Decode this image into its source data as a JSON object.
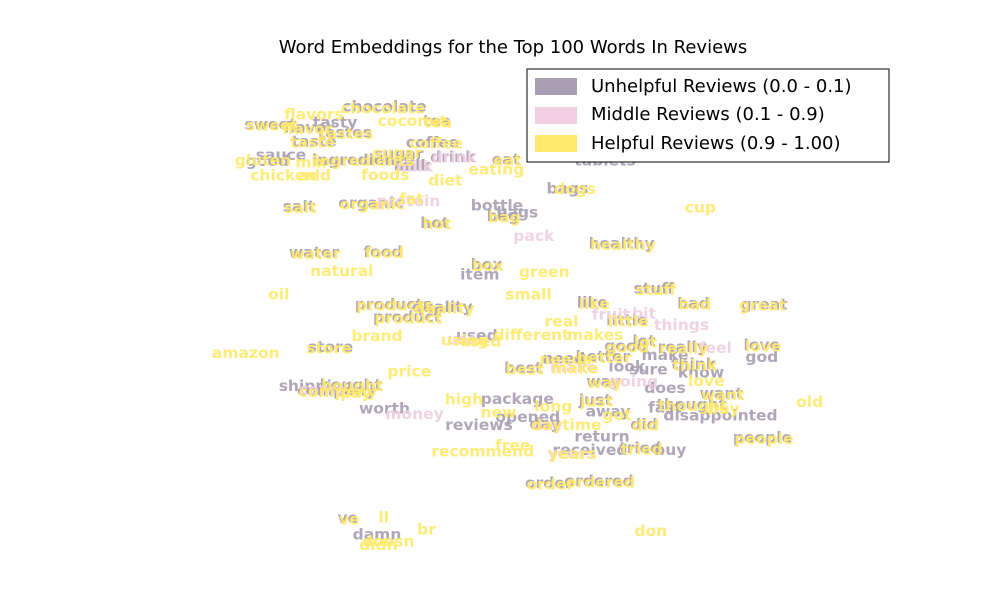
{
  "chart_data": {
    "type": "scatter",
    "title": "Word Embeddings for the Top 100 Words In Reviews",
    "xlabel": "",
    "ylabel": "",
    "axes_visible": false,
    "grid": false,
    "legend_position": "top-right",
    "xlim": [
      0,
      100
    ],
    "ylim": [
      0,
      100
    ],
    "series": [
      {
        "name": "Unhelpful Reviews (0.0 - 0.1)",
        "color": "#a89fb2",
        "points": [
          {
            "word": "chocolate",
            "x": 34.6,
            "y": 92.4
          },
          {
            "word": "tea",
            "x": 41.6,
            "y": 89.2
          },
          {
            "word": "tasty",
            "x": 28.0,
            "y": 88.9
          },
          {
            "word": "sweet",
            "x": 19.4,
            "y": 88.5
          },
          {
            "word": "flavor",
            "x": 24.5,
            "y": 87.8
          },
          {
            "word": "tastes",
            "x": 29.3,
            "y": 86.7
          },
          {
            "word": "taste",
            "x": 25.2,
            "y": 84.8
          },
          {
            "word": "sauce",
            "x": 20.8,
            "y": 81.8
          },
          {
            "word": "good",
            "x": 19.0,
            "y": 80.5
          },
          {
            "word": "sugar",
            "x": 36.5,
            "y": 82.1
          },
          {
            "word": "ingredients",
            "x": 31.6,
            "y": 80.8
          },
          {
            "word": "coffee",
            "x": 41.0,
            "y": 84.6
          },
          {
            "word": "drink",
            "x": 43.7,
            "y": 81.4
          },
          {
            "word": "eat",
            "x": 50.8,
            "y": 80.9
          },
          {
            "word": "milk",
            "x": 38.3,
            "y": 79.6
          },
          {
            "word": "tablets",
            "x": 64.0,
            "y": 80.6
          },
          {
            "word": "bags",
            "x": 59.0,
            "y": 74.6
          },
          {
            "word": "salt",
            "x": 23.2,
            "y": 70.6
          },
          {
            "word": "organic",
            "x": 32.8,
            "y": 71.4
          },
          {
            "word": "bottle",
            "x": 49.6,
            "y": 70.9
          },
          {
            "word": "bags",
            "x": 52.3,
            "y": 69.4
          },
          {
            "word": "bag",
            "x": 50.4,
            "y": 68.6
          },
          {
            "word": "hot",
            "x": 41.3,
            "y": 67.1
          },
          {
            "word": "water",
            "x": 25.2,
            "y": 60.6
          },
          {
            "word": "food",
            "x": 34.4,
            "y": 60.8
          },
          {
            "word": "box",
            "x": 48.2,
            "y": 58.0
          },
          {
            "word": "item",
            "x": 47.3,
            "y": 55.9
          },
          {
            "word": "healthy",
            "x": 66.2,
            "y": 62.6
          },
          {
            "word": "stuff",
            "x": 70.5,
            "y": 52.8
          },
          {
            "word": "like",
            "x": 62.3,
            "y": 49.8
          },
          {
            "word": "bad",
            "x": 75.8,
            "y": 49.6
          },
          {
            "word": "great",
            "x": 85.2,
            "y": 49.4
          },
          {
            "word": "products",
            "x": 35.8,
            "y": 49.4
          },
          {
            "word": "quality",
            "x": 42.3,
            "y": 48.8
          },
          {
            "word": "product",
            "x": 37.6,
            "y": 46.6
          },
          {
            "word": "little",
            "x": 66.9,
            "y": 46.0
          },
          {
            "word": "used",
            "x": 46.9,
            "y": 42.6
          },
          {
            "word": "good",
            "x": 66.8,
            "y": 40.3
          },
          {
            "word": "lot",
            "x": 69.2,
            "y": 41.4
          },
          {
            "word": "really",
            "x": 74.3,
            "y": 40.1
          },
          {
            "word": "store",
            "x": 27.4,
            "y": 40.1
          },
          {
            "word": "love",
            "x": 84.9,
            "y": 40.5
          },
          {
            "word": "need",
            "x": 58.5,
            "y": 37.6
          },
          {
            "word": "better",
            "x": 63.7,
            "y": 38.0
          },
          {
            "word": "make",
            "x": 72.0,
            "y": 38.4
          },
          {
            "word": "think",
            "x": 75.8,
            "y": 36.4
          },
          {
            "word": "god",
            "x": 84.9,
            "y": 37.9
          },
          {
            "word": "best",
            "x": 53.1,
            "y": 35.5
          },
          {
            "word": "look",
            "x": 66.9,
            "y": 35.9
          },
          {
            "word": "sure",
            "x": 69.8,
            "y": 35.2
          },
          {
            "word": "know",
            "x": 76.8,
            "y": 34.6
          },
          {
            "word": "way",
            "x": 63.8,
            "y": 32.6
          },
          {
            "word": "shipping",
            "x": 25.5,
            "y": 31.6
          },
          {
            "word": "bought",
            "x": 30.1,
            "y": 31.9
          },
          {
            "word": "company",
            "x": 28.2,
            "y": 30.6
          },
          {
            "word": "package",
            "x": 52.3,
            "y": 28.8
          },
          {
            "word": "does",
            "x": 72.0,
            "y": 31.2
          },
          {
            "word": "want",
            "x": 79.5,
            "y": 30.0
          },
          {
            "word": "just",
            "x": 62.7,
            "y": 28.6
          },
          {
            "word": "worth",
            "x": 34.6,
            "y": 26.7
          },
          {
            "word": "fast",
            "x": 72.0,
            "y": 27.0
          },
          {
            "word": "thought",
            "x": 75.5,
            "y": 27.6
          },
          {
            "word": "away",
            "x": 64.4,
            "y": 26.1
          },
          {
            "word": "opened",
            "x": 53.7,
            "y": 24.9
          },
          {
            "word": "reviews",
            "x": 47.2,
            "y": 23.1
          },
          {
            "word": "day",
            "x": 56.0,
            "y": 23.4
          },
          {
            "word": "disappointed",
            "x": 79.4,
            "y": 25.2
          },
          {
            "word": "did",
            "x": 69.2,
            "y": 23.3
          },
          {
            "word": "return",
            "x": 63.6,
            "y": 20.7
          },
          {
            "word": "received",
            "x": 62.0,
            "y": 17.7
          },
          {
            "word": "tried",
            "x": 68.7,
            "y": 18.1
          },
          {
            "word": "buy",
            "x": 72.7,
            "y": 17.7
          },
          {
            "word": "people",
            "x": 85.0,
            "y": 20.4
          },
          {
            "word": "ordered",
            "x": 63.2,
            "y": 11.0
          },
          {
            "word": "order",
            "x": 56.5,
            "y": 10.5
          },
          {
            "word": "damn",
            "x": 33.6,
            "y": -0.6
          },
          {
            "word": "ve",
            "x": 29.7,
            "y": 2.9
          }
        ]
      },
      {
        "name": "Middle Reviews (0.1 - 0.9)",
        "color": "#efcfe0",
        "points": [
          {
            "word": "drink",
            "x": 43.9,
            "y": 81.3
          },
          {
            "word": "milk",
            "x": 38.6,
            "y": 79.4
          },
          {
            "word": "protein",
            "x": 37.8,
            "y": 71.8
          },
          {
            "word": "pack",
            "x": 54.5,
            "y": 64.2
          },
          {
            "word": "fruit",
            "x": 64.8,
            "y": 47.2
          },
          {
            "word": "bit",
            "x": 69.2,
            "y": 47.4
          },
          {
            "word": "things",
            "x": 74.2,
            "y": 44.9
          },
          {
            "word": "feel",
            "x": 78.7,
            "y": 39.9
          },
          {
            "word": "going",
            "x": 67.8,
            "y": 32.6
          },
          {
            "word": "come",
            "x": 26.3,
            "y": 30.9
          },
          {
            "word": "money",
            "x": 38.6,
            "y": 25.5
          },
          {
            "word": "use",
            "x": 45.0,
            "y": 41.7
          },
          {
            "word": "make",
            "x": 59.8,
            "y": 35.7
          },
          {
            "word": "years",
            "x": 59.5,
            "y": 17.0
          },
          {
            "word": "day",
            "x": 56.3,
            "y": 23.0
          }
        ]
      },
      {
        "name": "Helpful Reviews (0.9 - 1.00)",
        "color": "#ffe96b",
        "points": [
          {
            "word": "chocolate",
            "x": 34.4,
            "y": 92.0
          },
          {
            "word": "flavors",
            "x": 25.2,
            "y": 90.6
          },
          {
            "word": "coconut",
            "x": 38.3,
            "y": 89.2
          },
          {
            "word": "tea",
            "x": 41.7,
            "y": 88.9
          },
          {
            "word": "sweet",
            "x": 19.6,
            "y": 88.3
          },
          {
            "word": "flavor",
            "x": 24.3,
            "y": 87.5
          },
          {
            "word": "tastes",
            "x": 29.5,
            "y": 86.4
          },
          {
            "word": "taste",
            "x": 25.0,
            "y": 84.6
          },
          {
            "word": "sugar",
            "x": 36.3,
            "y": 82.3
          },
          {
            "word": "coffee",
            "x": 41.5,
            "y": 84.3
          },
          {
            "word": "gluten",
            "x": 18.4,
            "y": 80.7
          },
          {
            "word": "mix",
            "x": 24.8,
            "y": 80.2
          },
          {
            "word": "ingredients",
            "x": 31.9,
            "y": 80.5
          },
          {
            "word": "eat",
            "x": 51.0,
            "y": 80.6
          },
          {
            "word": "eating",
            "x": 49.5,
            "y": 78.7
          },
          {
            "word": "chicken",
            "x": 21.1,
            "y": 77.4
          },
          {
            "word": "add",
            "x": 25.3,
            "y": 77.4
          },
          {
            "word": "foods",
            "x": 34.7,
            "y": 77.5
          },
          {
            "word": "diet",
            "x": 42.7,
            "y": 76.3
          },
          {
            "word": "dogs",
            "x": 60.0,
            "y": 74.5
          },
          {
            "word": "fat",
            "x": 38.2,
            "y": 72.3
          },
          {
            "word": "organic",
            "x": 33.0,
            "y": 71.1
          },
          {
            "word": "salt",
            "x": 23.4,
            "y": 70.3
          },
          {
            "word": "cup",
            "x": 76.7,
            "y": 70.4
          },
          {
            "word": "bag",
            "x": 50.6,
            "y": 68.3
          },
          {
            "word": "hot",
            "x": 41.6,
            "y": 66.8
          },
          {
            "word": "healthy",
            "x": 66.4,
            "y": 62.3
          },
          {
            "word": "water",
            "x": 25.4,
            "y": 60.3
          },
          {
            "word": "food",
            "x": 34.6,
            "y": 60.5
          },
          {
            "word": "box",
            "x": 48.4,
            "y": 57.7
          },
          {
            "word": "natural",
            "x": 28.9,
            "y": 56.6
          },
          {
            "word": "green",
            "x": 55.9,
            "y": 56.4
          },
          {
            "word": "oil",
            "x": 20.5,
            "y": 51.5
          },
          {
            "word": "small",
            "x": 53.8,
            "y": 51.5
          },
          {
            "word": "products",
            "x": 36.0,
            "y": 49.1
          },
          {
            "word": "quality",
            "x": 42.6,
            "y": 48.5
          },
          {
            "word": "like",
            "x": 62.6,
            "y": 49.5
          },
          {
            "word": "stuff",
            "x": 70.8,
            "y": 52.5
          },
          {
            "word": "bad",
            "x": 76.0,
            "y": 49.3
          },
          {
            "word": "great",
            "x": 85.0,
            "y": 49.1
          },
          {
            "word": "product",
            "x": 37.8,
            "y": 46.3
          },
          {
            "word": "real",
            "x": 58.2,
            "y": 45.6
          },
          {
            "word": "little",
            "x": 67.1,
            "y": 45.7
          },
          {
            "word": "brand",
            "x": 33.6,
            "y": 42.5
          },
          {
            "word": "different",
            "x": 54.2,
            "y": 42.7
          },
          {
            "word": "makes",
            "x": 62.7,
            "y": 42.7
          },
          {
            "word": "lot",
            "x": 69.4,
            "y": 41.1
          },
          {
            "word": "using",
            "x": 45.3,
            "y": 41.5
          },
          {
            "word": "used",
            "x": 47.4,
            "y": 41.3
          },
          {
            "word": "store",
            "x": 27.2,
            "y": 39.8
          },
          {
            "word": "good",
            "x": 67.0,
            "y": 40.0
          },
          {
            "word": "love",
            "x": 85.1,
            "y": 40.2
          },
          {
            "word": "really",
            "x": 74.5,
            "y": 39.8
          },
          {
            "word": "amazon",
            "x": 16.1,
            "y": 38.8
          },
          {
            "word": "needs",
            "x": 58.7,
            "y": 37.4
          },
          {
            "word": "better",
            "x": 63.9,
            "y": 37.7
          },
          {
            "word": "think",
            "x": 76.0,
            "y": 36.1
          },
          {
            "word": "best",
            "x": 53.3,
            "y": 35.2
          },
          {
            "word": "make",
            "x": 60.0,
            "y": 35.4
          },
          {
            "word": "price",
            "x": 37.9,
            "y": 34.8
          },
          {
            "word": "way",
            "x": 64.0,
            "y": 32.3
          },
          {
            "word": "bought",
            "x": 30.3,
            "y": 31.6
          },
          {
            "word": "love",
            "x": 77.5,
            "y": 32.7
          },
          {
            "word": "company",
            "x": 28.4,
            "y": 30.3
          },
          {
            "word": "pay",
            "x": 30.8,
            "y": 30.1
          },
          {
            "word": "high",
            "x": 45.2,
            "y": 28.7
          },
          {
            "word": "want",
            "x": 79.7,
            "y": 29.7
          },
          {
            "word": "long",
            "x": 57.1,
            "y": 27.2
          },
          {
            "word": "just",
            "x": 62.9,
            "y": 28.3
          },
          {
            "word": "thought",
            "x": 75.7,
            "y": 27.3
          },
          {
            "word": "buy",
            "x": 79.8,
            "y": 26.6
          },
          {
            "word": "old",
            "x": 91.3,
            "y": 28.1
          },
          {
            "word": "new",
            "x": 49.8,
            "y": 25.9
          },
          {
            "word": "got",
            "x": 65.6,
            "y": 25.3
          },
          {
            "word": "day",
            "x": 56.2,
            "y": 23.2
          },
          {
            "word": "time",
            "x": 60.9,
            "y": 23.1
          },
          {
            "word": "did",
            "x": 69.4,
            "y": 23.0
          },
          {
            "word": "people",
            "x": 85.2,
            "y": 20.1
          },
          {
            "word": "recommend",
            "x": 47.7,
            "y": 17.4
          },
          {
            "word": "free",
            "x": 51.7,
            "y": 18.7
          },
          {
            "word": "years",
            "x": 59.7,
            "y": 16.8
          },
          {
            "word": "tried",
            "x": 68.9,
            "y": 17.8
          },
          {
            "word": "ordered",
            "x": 63.4,
            "y": 10.7
          },
          {
            "word": "order",
            "x": 56.7,
            "y": 10.2
          },
          {
            "word": "ve",
            "x": 29.9,
            "y": 2.6
          },
          {
            "word": "ll",
            "x": 34.5,
            "y": 3.0
          },
          {
            "word": "br",
            "x": 40.2,
            "y": 0.4
          },
          {
            "word": "doesn",
            "x": 35.1,
            "y": -2.2
          },
          {
            "word": "didn",
            "x": 33.8,
            "y": -2.9
          },
          {
            "word": "don",
            "x": 70.1,
            "y": 0.1
          }
        ]
      }
    ]
  }
}
